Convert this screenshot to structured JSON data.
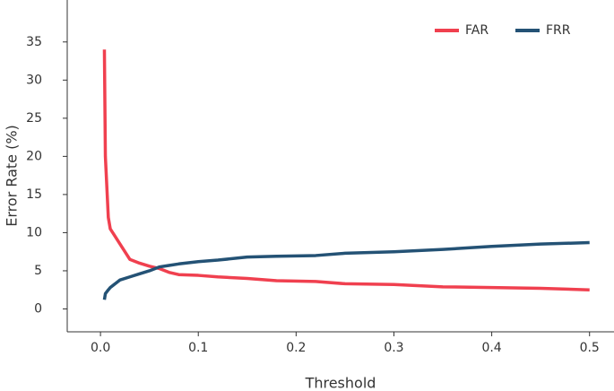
{
  "chart_data": {
    "type": "line",
    "x_label": "Threshold",
    "y_label": "Error Rate (%)",
    "x": [
      0.004,
      0.005,
      0.008,
      0.01,
      0.02,
      0.03,
      0.04,
      0.05,
      0.06,
      0.07,
      0.08,
      0.1,
      0.12,
      0.15,
      0.18,
      0.22,
      0.25,
      0.3,
      0.35,
      0.4,
      0.45,
      0.5
    ],
    "series": [
      {
        "name": "FAR",
        "color": "#f0404f",
        "values": [
          34,
          20,
          12,
          10.5,
          8.5,
          6.5,
          6,
          5.6,
          5.3,
          4.8,
          4.5,
          4.4,
          4.2,
          4.0,
          3.7,
          3.6,
          3.3,
          3.2,
          2.9,
          2.8,
          2.7,
          2.5
        ]
      },
      {
        "name": "FRR",
        "color": "#245275",
        "values": [
          1.2,
          2,
          2.5,
          2.8,
          3.8,
          4.2,
          4.6,
          5,
          5.5,
          5.7,
          5.9,
          6.2,
          6.4,
          6.8,
          6.9,
          7.0,
          7.3,
          7.5,
          7.8,
          8.2,
          8.5,
          8.7
        ]
      }
    ],
    "xlim": [
      -0.034,
      0.525
    ],
    "xticks": [
      {
        "value": 0,
        "label": "0.0"
      },
      0.1,
      0.2,
      0.3,
      0.4,
      0.5
    ],
    "ylim": [
      -3,
      40.5
    ],
    "yticks": [
      0,
      5,
      10,
      15,
      20,
      25,
      30,
      35
    ],
    "legend": "top-right",
    "grid": false
  }
}
